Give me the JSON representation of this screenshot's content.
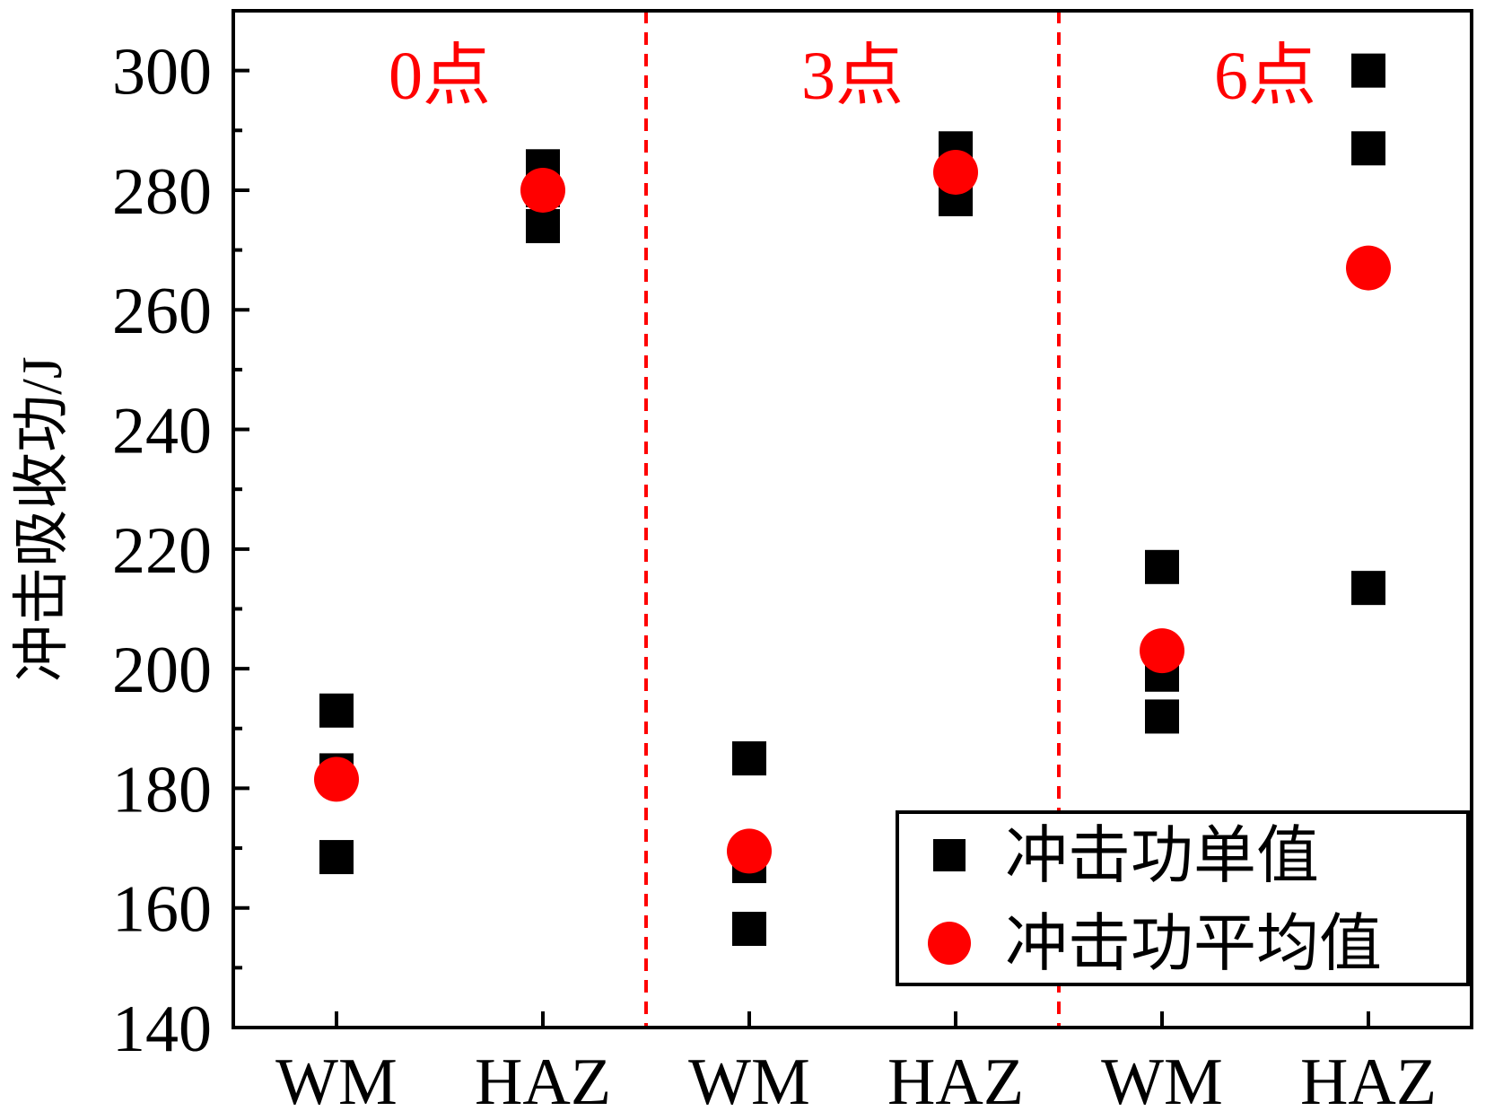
{
  "chart_data": {
    "type": "scatter",
    "ylabel": "冲击吸收功/J",
    "xlabel": "",
    "ylim": [
      140,
      310
    ],
    "yticks": [
      140,
      160,
      180,
      200,
      220,
      240,
      260,
      280,
      300
    ],
    "categories": [
      "WM",
      "HAZ",
      "WM",
      "HAZ",
      "WM",
      "HAZ"
    ],
    "groups": [
      {
        "label": "0点",
        "categories": [
          0,
          1
        ]
      },
      {
        "label": "3点",
        "categories": [
          2,
          3
        ]
      },
      {
        "label": "6点",
        "categories": [
          4,
          5
        ]
      }
    ],
    "series": [
      {
        "name": "冲击功单值",
        "marker": "square",
        "color": "#000000",
        "points": [
          {
            "x": 0,
            "y": 193
          },
          {
            "x": 0,
            "y": 183
          },
          {
            "x": 0,
            "y": 168.5
          },
          {
            "x": 1,
            "y": 284
          },
          {
            "x": 1,
            "y": 280
          },
          {
            "x": 1,
            "y": 274
          },
          {
            "x": 2,
            "y": 185
          },
          {
            "x": 2,
            "y": 167
          },
          {
            "x": 2,
            "y": 156.5
          },
          {
            "x": 3,
            "y": 287
          },
          {
            "x": 3,
            "y": 283
          },
          {
            "x": 3,
            "y": 278.5
          },
          {
            "x": 4,
            "y": 217
          },
          {
            "x": 4,
            "y": 199
          },
          {
            "x": 4,
            "y": 192
          },
          {
            "x": 5,
            "y": 300
          },
          {
            "x": 5,
            "y": 287
          },
          {
            "x": 5,
            "y": 213.5
          }
        ]
      },
      {
        "name": "冲击功平均值",
        "marker": "circle",
        "color": "#ff0000",
        "points": [
          {
            "x": 0,
            "y": 181.5
          },
          {
            "x": 1,
            "y": 280
          },
          {
            "x": 2,
            "y": 169.5
          },
          {
            "x": 3,
            "y": 283
          },
          {
            "x": 4,
            "y": 203
          },
          {
            "x": 5,
            "y": 267
          }
        ]
      }
    ],
    "group_divider_color": "#ff0000",
    "legend": "bottom-right",
    "grid": false
  }
}
